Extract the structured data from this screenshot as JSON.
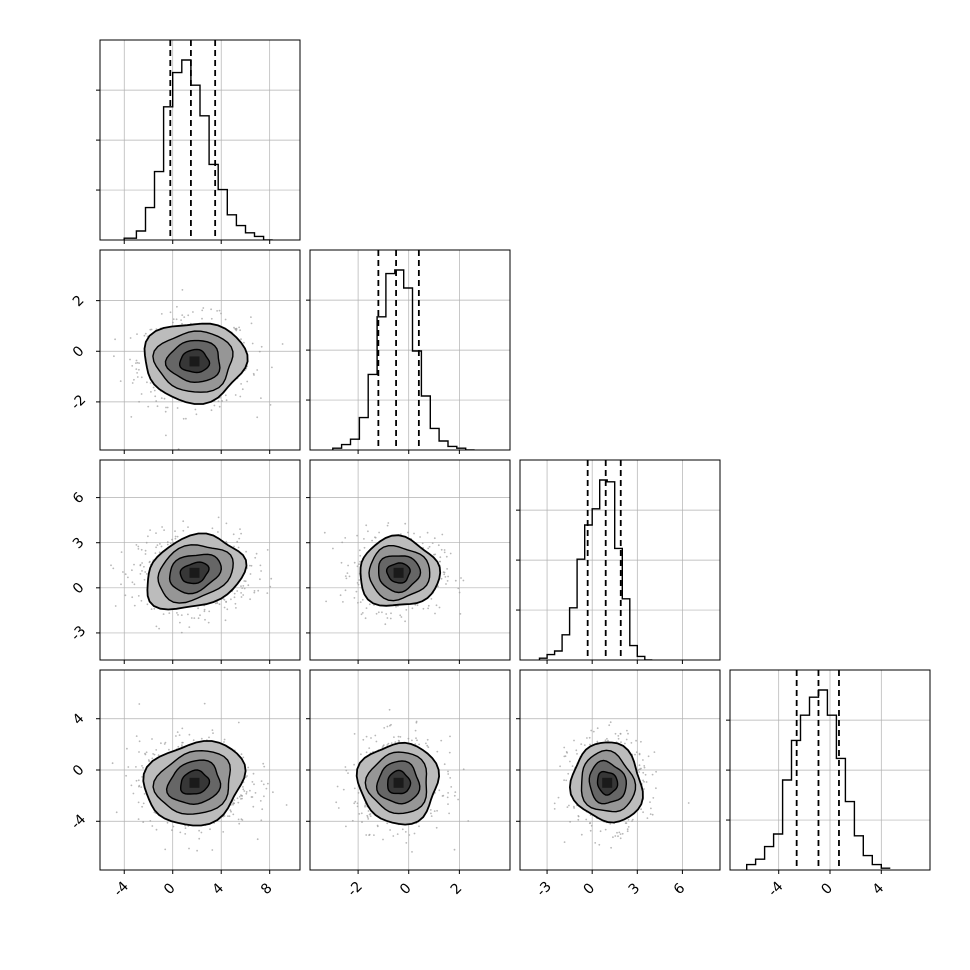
{
  "chart_data": {
    "type": "corner",
    "dimensions": 4,
    "grid": true,
    "colors": {
      "line": "#000000",
      "grid": "#b0b0b0",
      "scatter": "#9a9a9a",
      "density_max": "#1a1a1a",
      "density_min": "#d9d9d9"
    },
    "ranges": [
      [
        -6,
        10.5
      ],
      [
        -3.9,
        4.0
      ],
      [
        -4.8,
        8.5
      ],
      [
        -7.8,
        7.8
      ]
    ],
    "ticks": [
      [
        "-4",
        "0",
        "4",
        "8"
      ],
      [
        "-2",
        "0",
        "2"
      ],
      [
        "-3",
        "0",
        "3",
        "6"
      ],
      [
        "-4",
        "0",
        "4"
      ]
    ],
    "tick_values": [
      [
        -4,
        0,
        4,
        8
      ],
      [
        -2,
        0,
        2
      ],
      [
        -3,
        0,
        3,
        6
      ],
      [
        -4,
        0,
        4
      ]
    ],
    "marginals": [
      {
        "param": 1,
        "mean": 1.8,
        "std": 2.0,
        "quantiles": [
          -0.2,
          1.5,
          3.5
        ],
        "edges": [
          -4.0,
          -3.0,
          -2.25,
          -1.5,
          -0.75,
          0.0,
          0.75,
          1.5,
          2.25,
          3.0,
          3.75,
          4.5,
          5.25,
          6.0,
          6.75,
          7.5,
          8.25
        ],
        "counts": [
          0.01,
          0.05,
          0.18,
          0.38,
          0.74,
          0.93,
          1.0,
          0.86,
          0.69,
          0.42,
          0.28,
          0.14,
          0.08,
          0.04,
          0.02,
          0.0
        ]
      },
      {
        "param": 2,
        "mean": -0.4,
        "std": 0.75,
        "quantiles": [
          -1.2,
          -0.5,
          0.4
        ],
        "edges": [
          -3.0,
          -2.65,
          -2.3,
          -1.95,
          -1.6,
          -1.25,
          -0.9,
          -0.55,
          -0.2,
          0.15,
          0.5,
          0.85,
          1.2,
          1.55,
          1.9,
          2.25,
          2.6
        ],
        "counts": [
          0.01,
          0.03,
          0.06,
          0.18,
          0.42,
          0.74,
          0.98,
          1.0,
          0.9,
          0.55,
          0.3,
          0.12,
          0.05,
          0.02,
          0.01,
          0.0
        ]
      },
      {
        "param": 3,
        "mean": 1.0,
        "std": 1.1,
        "quantiles": [
          -0.3,
          0.9,
          1.9
        ],
        "edges": [
          -3.5,
          -3.0,
          -2.5,
          -2.0,
          -1.5,
          -1.0,
          -0.5,
          0.0,
          0.5,
          1.0,
          1.5,
          2.0,
          2.5,
          3.0,
          3.5,
          4.0
        ],
        "counts": [
          0.01,
          0.03,
          0.05,
          0.14,
          0.29,
          0.56,
          0.75,
          0.84,
          1.0,
          0.99,
          0.62,
          0.34,
          0.08,
          0.02,
          0.0
        ]
      },
      {
        "param": 4,
        "mean": -1.0,
        "std": 1.5,
        "quantiles": [
          -2.6,
          -0.9,
          0.7
        ],
        "edges": [
          -6.5,
          -5.8,
          -5.1,
          -4.4,
          -3.7,
          -3.0,
          -2.3,
          -1.6,
          -0.9,
          -0.2,
          0.5,
          1.2,
          1.9,
          2.6,
          3.3,
          4.0,
          4.7
        ],
        "counts": [
          0.03,
          0.06,
          0.13,
          0.2,
          0.5,
          0.72,
          0.86,
          0.96,
          1.0,
          0.86,
          0.62,
          0.38,
          0.19,
          0.08,
          0.03,
          0.01
        ]
      }
    ]
  }
}
